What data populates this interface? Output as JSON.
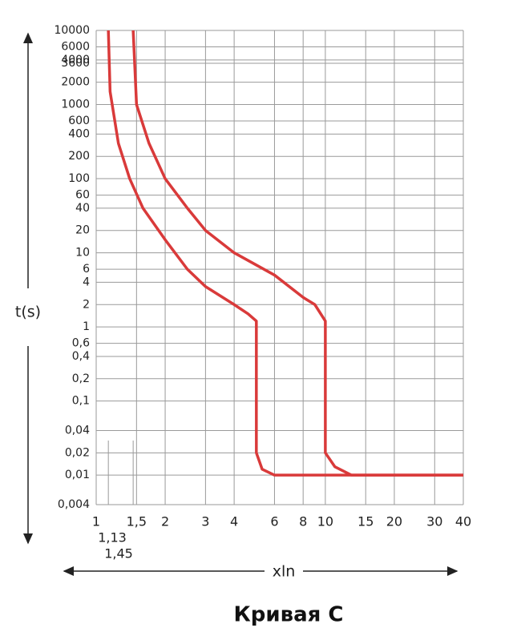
{
  "chart_data": {
    "type": "line",
    "title": "Кривая C",
    "xlabel": "xln",
    "ylabel": "t(s)",
    "xscale": "log",
    "yscale": "log",
    "grid": true,
    "xlim": [
      1,
      40
    ],
    "ylim": [
      0.004,
      10000
    ],
    "xticks": [
      1,
      {
        "value": 1.5,
        "label": "1,5"
      },
      2,
      3,
      4,
      6,
      8,
      10,
      15,
      20,
      30,
      40
    ],
    "yticks": [
      10000,
      6000,
      4000,
      3600,
      2000,
      1000,
      600,
      400,
      200,
      100,
      60,
      40,
      20,
      10,
      6,
      4,
      2,
      1,
      {
        "value": 0.6,
        "label": "0,6"
      },
      {
        "value": 0.4,
        "label": "0,4"
      },
      {
        "value": 0.2,
        "label": "0,2"
      },
      {
        "value": 0.1,
        "label": "0,1"
      },
      {
        "value": 0.04,
        "label": "0,04"
      },
      {
        "value": 0.02,
        "label": "0,02"
      },
      {
        "value": 0.01,
        "label": "0,01"
      },
      {
        "value": 0.004,
        "label": "0,004"
      }
    ],
    "annotations": [
      {
        "x": 1.13,
        "label": "1,13"
      },
      {
        "x": 1.45,
        "label": "1,45"
      }
    ],
    "series": [
      {
        "color": "#d93a3a",
        "x": [
          1.13,
          1.15,
          1.25,
          1.4,
          1.6,
          2,
          2.5,
          3,
          4,
          4.6,
          5,
          5,
          5.3,
          6,
          40
        ],
        "values": [
          10000,
          1500,
          300,
          100,
          40,
          15,
          6,
          3.5,
          2,
          1.5,
          1.2,
          0.02,
          0.012,
          0.01,
          0.01
        ]
      },
      {
        "color": "#d93a3a",
        "x": [
          1.45,
          1.5,
          1.7,
          2,
          2.5,
          3,
          4,
          6,
          8,
          9,
          10,
          10,
          11,
          13,
          40
        ],
        "values": [
          10000,
          1000,
          300,
          100,
          40,
          20,
          10,
          5,
          2.5,
          2,
          1.2,
          0.02,
          0.013,
          0.01,
          0.01
        ]
      }
    ]
  }
}
